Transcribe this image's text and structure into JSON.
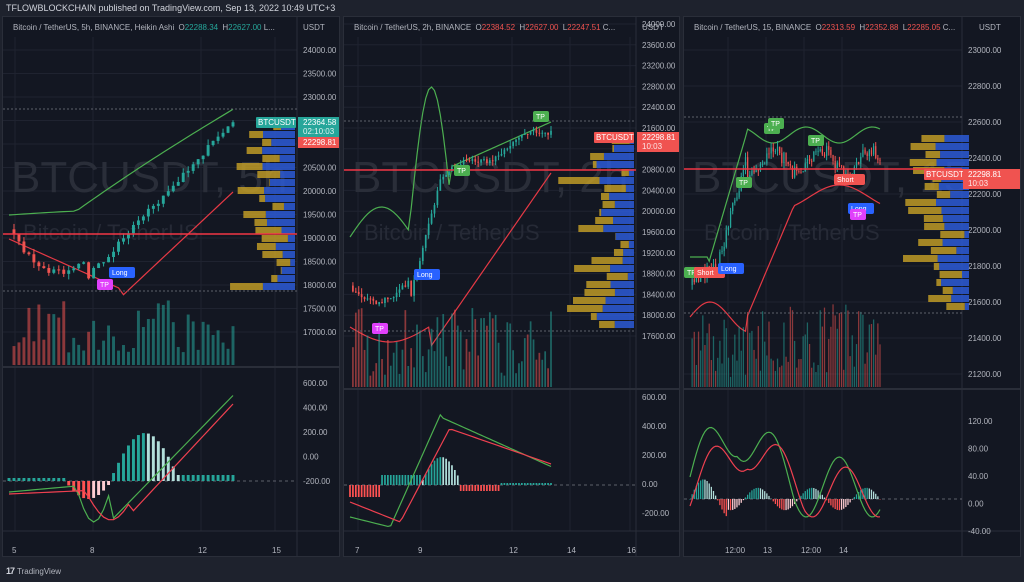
{
  "header": {
    "published_text": "TFLOWBLOCKCHAIN published on TradingView.com, Sep 13, 2022 10:49 UTC+3"
  },
  "footer": {
    "logo": "17",
    "brand": "TradingView"
  },
  "colors": {
    "background": "#131722",
    "frame": "#1e222d",
    "grid": "#1f2330",
    "up": "#26a69a",
    "down": "#ef5350",
    "upper_band": "#4caf50",
    "lower_band": "#e53945",
    "macd_line": "#4caf50",
    "signal_line": "#ef4050",
    "hist_up_strong": "#26a69a",
    "hist_up_weak": "#b2dfdb",
    "hist_down_strong": "#ff5252",
    "hist_down_weak": "#ffcdd2",
    "vp_up": "#c9a227",
    "vp_down": "#2d5ad6",
    "long_label": "#2962ff",
    "short_label": "#f05350",
    "tp_green": "#4caf50",
    "tp_magenta": "#e040fb",
    "price_line": "#f23645"
  },
  "panels": [
    {
      "id": "5h",
      "legend": {
        "symbol_text": "Bitcoin / TetherUS, 5h, BINANCE, Heikin Ashi",
        "open_label": "O",
        "open": "22288.34",
        "high_label": "H",
        "high": "22627.00",
        "rest": "L...",
        "value_class": "up"
      },
      "currency": "USDT",
      "watermark_symbol": "BTCUSDT, 5h",
      "watermark_name": "Bitcoin / TetherUS",
      "price_axis": [
        "24000.00",
        "23500.00",
        "23000.00",
        "21500.00",
        "21000.00",
        "20500.00",
        "20000.00",
        "19500.00",
        "19000.00",
        "18500.00",
        "18000.00",
        "17500.00",
        "17000.00"
      ],
      "price_tag": {
        "symbol": "BTCUSDT",
        "price": "22364.58",
        "countdown": "02:10:03",
        "color": "#26a69a"
      },
      "secondary_tag": {
        "price": "22298.81",
        "color": "#f05350"
      },
      "indicator_axis": [
        "600.00",
        "400.00",
        "200.00",
        "0.00",
        "-200.00"
      ],
      "time_axis": [
        "5",
        "8",
        "12",
        "15"
      ],
      "signals": [
        {
          "type": "Long",
          "label": "Long"
        },
        {
          "type": "TP",
          "label": "TP",
          "color": "magenta"
        }
      ]
    },
    {
      "id": "2h",
      "legend": {
        "symbol_text": "Bitcoin / TetherUS, 2h, BINANCE",
        "open_label": "O",
        "open": "22384.52",
        "high_label": "H",
        "high": "22627.00",
        "low_label": "L",
        "low": "22247.51",
        "rest": "C...",
        "value_class": "down"
      },
      "currency": "USDT",
      "watermark_symbol": "BTCUSDT, 2h",
      "watermark_name": "Bitcoin / TetherUS",
      "price_axis": [
        "24000.00",
        "23600.00",
        "23200.00",
        "22800.00",
        "22400.00",
        "21600.00",
        "21200.00",
        "20800.00",
        "20400.00",
        "20000.00",
        "19600.00",
        "19200.00",
        "18800.00",
        "18400.00",
        "18000.00",
        "17600.00"
      ],
      "price_tag": {
        "symbol": "BTCUSDT",
        "price": "22298.81",
        "countdown": "10:03",
        "color": "#f05350"
      },
      "indicator_axis": [
        "600.00",
        "400.00",
        "200.00",
        "0.00",
        "-200.00"
      ],
      "time_axis": [
        "7",
        "9",
        "12",
        "14",
        "16"
      ],
      "signals": [
        {
          "type": "TP",
          "label": "TP",
          "color": "green"
        },
        {
          "type": "TP",
          "label": "TP",
          "color": "green"
        },
        {
          "type": "Long",
          "label": "Long"
        },
        {
          "type": "TP",
          "label": "TP",
          "color": "magenta"
        }
      ]
    },
    {
      "id": "15",
      "legend": {
        "symbol_text": "Bitcoin / TetherUS, 15, BINANCE",
        "open_label": "O",
        "open": "22313.59",
        "high_label": "H",
        "high": "22352.88",
        "low_label": "L",
        "low": "22285.05",
        "rest": "C...",
        "value_class": "down"
      },
      "currency": "USDT",
      "watermark_symbol": "BTCUSDT, 15",
      "watermark_name": "Bitcoin / TetherUS",
      "price_axis": [
        "23000.00",
        "22800.00",
        "22600.00",
        "22400.00",
        "22200.00",
        "22000.00",
        "21800.00",
        "21600.00",
        "21400.00",
        "21200.00"
      ],
      "price_tag": {
        "symbol": "BTCUSDT",
        "price": "22298.81",
        "countdown": "10:03",
        "color": "#f05350"
      },
      "indicator_axis": [
        "120.00",
        "80.00",
        "40.00",
        "0.00",
        "-40.00"
      ],
      "time_axis": [
        "12:00",
        "13",
        "12:00",
        "14"
      ],
      "signals": [
        {
          "type": "TP",
          "label": "TP",
          "color": "green"
        },
        {
          "type": "TP",
          "label": "TP",
          "color": "green"
        },
        {
          "type": "TP",
          "label": "TP",
          "color": "green"
        },
        {
          "type": "TP",
          "label": "TP",
          "color": "green"
        },
        {
          "type": "Short",
          "label": "Short"
        },
        {
          "type": "Long",
          "label": "Long"
        },
        {
          "type": "TP",
          "label": "TP",
          "color": "magenta"
        },
        {
          "type": "TP",
          "label": "TP",
          "color": "green"
        },
        {
          "type": "Short",
          "label": "Short"
        },
        {
          "type": "Long",
          "label": "Long"
        }
      ]
    }
  ]
}
